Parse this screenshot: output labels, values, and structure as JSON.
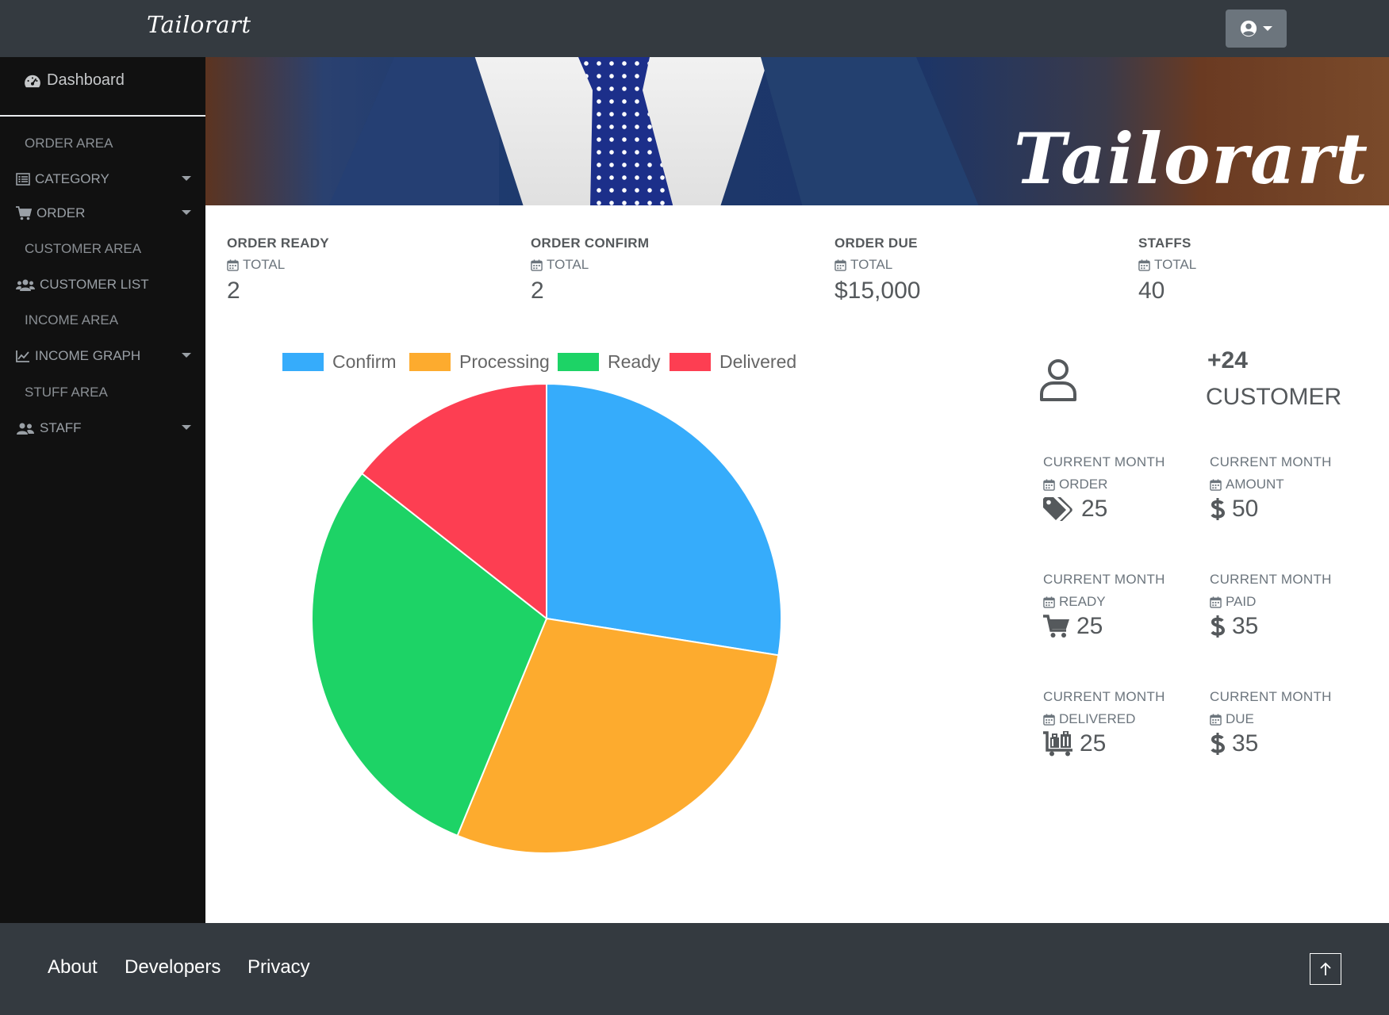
{
  "navbar": {
    "brand": "Tailorart"
  },
  "sidebar": {
    "dashboard": "Dashboard",
    "items": [
      {
        "label": "ORDER AREA"
      },
      {
        "label": "CATEGORY"
      },
      {
        "label": "ORDER"
      },
      {
        "label": "CUSTOMER AREA"
      },
      {
        "label": "CUSTOMER LIST"
      },
      {
        "label": "INCOME AREA"
      },
      {
        "label": "INCOME GRAPH"
      },
      {
        "label": "STUFF AREA"
      },
      {
        "label": "STAFF"
      }
    ]
  },
  "banner": {
    "title": "Tailorart"
  },
  "stats": [
    {
      "label": "ORDER READY",
      "sub": "TOTAL",
      "value": "2"
    },
    {
      "label": "ORDER CONFIRM",
      "sub": "TOTAL",
      "value": "2"
    },
    {
      "label": "ORDER DUE",
      "sub": "TOTAL",
      "value": "$15,000"
    },
    {
      "label": "STAFFS",
      "sub": "TOTAL",
      "value": "40"
    }
  ],
  "chart_data": {
    "type": "pie",
    "categories": [
      "Confirm",
      "Processing",
      "Ready",
      "Delivered"
    ],
    "values": [
      27.5,
      28.7,
      29.4,
      14.4
    ],
    "colors": [
      "#36acfb",
      "#fdab2e",
      "#1dd366",
      "#fd3e52"
    ],
    "legend_position": "top"
  },
  "customer": {
    "count": "+24",
    "label": "CUSTOMER"
  },
  "month_stats": [
    {
      "label": "CURRENT MONTH",
      "sub": "ORDER",
      "icon": "tags-icon",
      "value": "25"
    },
    {
      "label": "CURRENT MONTH",
      "sub": "AMOUNT",
      "icon": "dollar-icon",
      "value": "50"
    },
    {
      "label": "CURRENT MONTH",
      "sub": "READY",
      "icon": "cart-icon",
      "value": "25"
    },
    {
      "label": "CURRENT MONTH",
      "sub": "PAID",
      "icon": "dollar-icon",
      "value": "35"
    },
    {
      "label": "CURRENT MONTH",
      "sub": "DELIVERED",
      "icon": "luggage-cart-icon",
      "value": "25"
    },
    {
      "label": "CURRENT MONTH",
      "sub": "DUE",
      "icon": "dollar-icon",
      "value": "35"
    }
  ],
  "footer": {
    "links": [
      {
        "label": "About"
      },
      {
        "label": "Developers"
      },
      {
        "label": "Privacy"
      }
    ]
  }
}
